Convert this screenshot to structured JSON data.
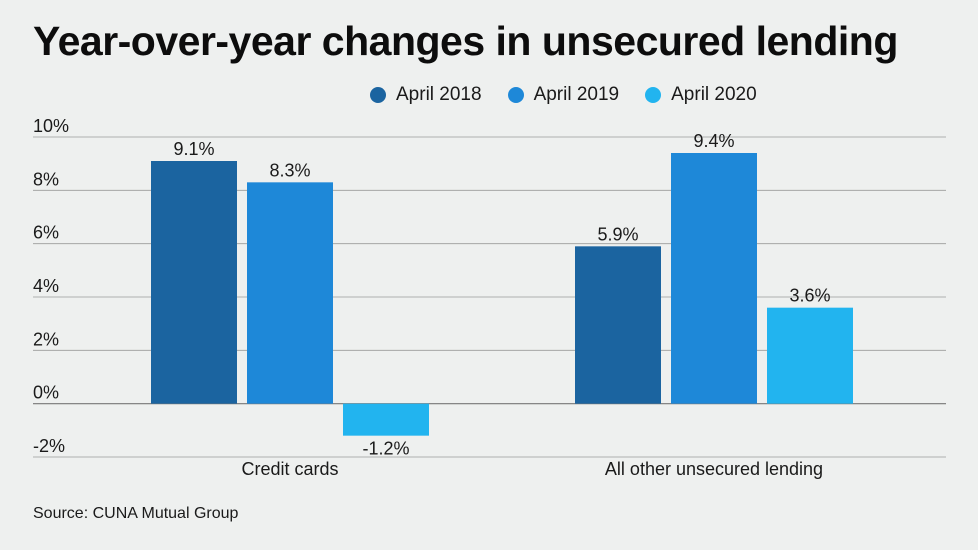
{
  "title": "Year-over-year changes in unsecured lending",
  "source": "Source: CUNA Mutual Group",
  "chart_data": {
    "type": "bar",
    "title": "Year-over-year changes in unsecured lending",
    "categories": [
      "Credit cards",
      "All other unsecured lending"
    ],
    "series": [
      {
        "name": "April 2018",
        "color": "#1b64a0",
        "values": [
          9.1,
          5.9
        ],
        "labels": [
          "9.1%",
          "5.9%"
        ]
      },
      {
        "name": "April 2019",
        "color": "#1e88d8",
        "values": [
          8.3,
          9.4
        ],
        "labels": [
          "8.3%",
          "9.4%"
        ]
      },
      {
        "name": "April 2020",
        "color": "#22b4ef",
        "values": [
          -1.2,
          3.6
        ],
        "labels": [
          "-1.2%",
          "3.6%"
        ]
      }
    ],
    "yticks": [
      {
        "value": 10,
        "label": "10%"
      },
      {
        "value": 8,
        "label": "8%"
      },
      {
        "value": 6,
        "label": "6%"
      },
      {
        "value": 4,
        "label": "4%"
      },
      {
        "value": 2,
        "label": "2%"
      },
      {
        "value": 0,
        "label": "0%"
      },
      {
        "value": -2,
        "label": "-2%"
      }
    ],
    "ylim": [
      -2,
      10
    ],
    "grid": true,
    "legend": "top"
  }
}
